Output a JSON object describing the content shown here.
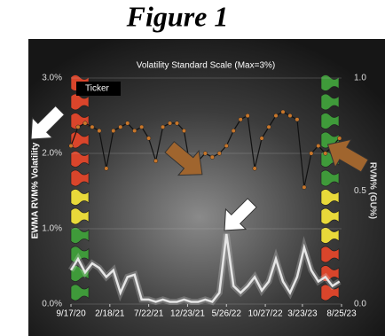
{
  "chart_data": {
    "type": "line",
    "figure_title": "Figure 1",
    "title": "Volatility Standard Scale (Max=3%)",
    "y_label": "EWMA RVM% Volatility",
    "y2_label": "RVM% (GU%)",
    "annotation": "Ticker",
    "x": [
      "9/17/20",
      "10/15/20",
      "11/12/20",
      "12/10/20",
      "1/7/21",
      "2/4/21",
      "3/4/21",
      "4/1/21",
      "4/29/21",
      "5/27/21",
      "6/24/21",
      "7/22/21",
      "8/19/21",
      "9/16/21",
      "10/14/21",
      "11/11/21",
      "12/9/21",
      "1/6/22",
      "2/3/22",
      "3/3/22",
      "3/31/22",
      "4/28/22",
      "5/26/22",
      "6/23/22",
      "7/21/22",
      "8/18/22",
      "9/15/22",
      "10/13/22",
      "11/10/22",
      "12/8/22",
      "1/5/23",
      "2/2/23",
      "3/2/23",
      "3/30/23",
      "4/27/23",
      "5/25/23",
      "6/22/23",
      "7/20/23",
      "8/17/23"
    ],
    "xlim": [
      "9/17/20",
      "8/25/23"
    ],
    "xticks": [
      "9/17/20",
      "2/18/21",
      "7/22/21",
      "12/23/21",
      "5/26/22",
      "10/27/22",
      "3/23/23",
      "8/25/23"
    ],
    "ylim": [
      0,
      3
    ],
    "yticks": [
      {
        "value": 0,
        "label": "0.0%"
      },
      {
        "value": 1,
        "label": "1.0%"
      },
      {
        "value": 2,
        "label": "2.0%"
      },
      {
        "value": 3,
        "label": "3.0%"
      }
    ],
    "y2lim": [
      0,
      1
    ],
    "y2ticks": [
      {
        "value": 0,
        "label": "0.0"
      },
      {
        "value": 0.5,
        "label": "0.5"
      },
      {
        "value": 1,
        "label": "1.0"
      }
    ],
    "grid": true,
    "series": [
      {
        "color": "#c8762a",
        "values": [
          2.1,
          2.35,
          2.4,
          2.35,
          2.3,
          1.8,
          2.3,
          2.35,
          2.4,
          2.3,
          2.35,
          2.2,
          1.9,
          2.35,
          2.4,
          2.4,
          2.3,
          1.75,
          1.9,
          2.0,
          1.95,
          2.0,
          2.1,
          2.3,
          2.45,
          2.5,
          1.8,
          2.2,
          2.35,
          2.5,
          2.55,
          2.5,
          2.45,
          1.55,
          2.0,
          2.1,
          2.0,
          2.1,
          2.2
        ]
      },
      {
        "color": "#e6e6e6",
        "axis": "y2",
        "values": [
          0.15,
          0.2,
          0.14,
          0.18,
          0.16,
          0.12,
          0.15,
          0.05,
          0.12,
          0.13,
          0.02,
          0.02,
          0.01,
          0.02,
          0.01,
          0.01,
          0.02,
          0.01,
          0.01,
          0.02,
          0.01,
          0.05,
          0.31,
          0.08,
          0.05,
          0.08,
          0.12,
          0.06,
          0.1,
          0.2,
          0.1,
          0.05,
          0.12,
          0.25,
          0.15,
          0.1,
          0.12,
          0.08,
          0.1
        ]
      }
    ]
  }
}
